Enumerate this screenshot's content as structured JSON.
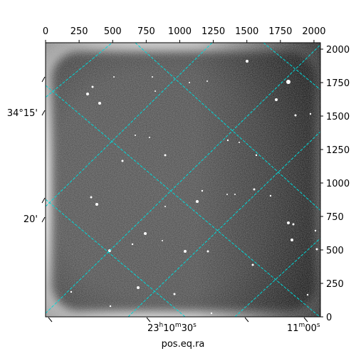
{
  "figure": {
    "xlabel": "pos.eq.ra",
    "pixel_axes": {
      "x_ticks": [
        "0",
        "250",
        "500",
        "750",
        "1000",
        "1250",
        "1500",
        "1750",
        "2000"
      ],
      "y_ticks": [
        "0",
        "250",
        "500",
        "750",
        "1000",
        "1250",
        "1500",
        "1750",
        "2000"
      ]
    },
    "world_axes": {
      "ra_tick_labels": [
        {
          "h": "23",
          "m": "10",
          "s": "30"
        },
        {
          "h": "11",
          "m": "00",
          "s": ""
        }
      ],
      "dec_tick_labels": [
        "34°15'",
        "20'"
      ]
    },
    "grid_color": "#00d8d8",
    "image_colormap": "gray"
  }
}
